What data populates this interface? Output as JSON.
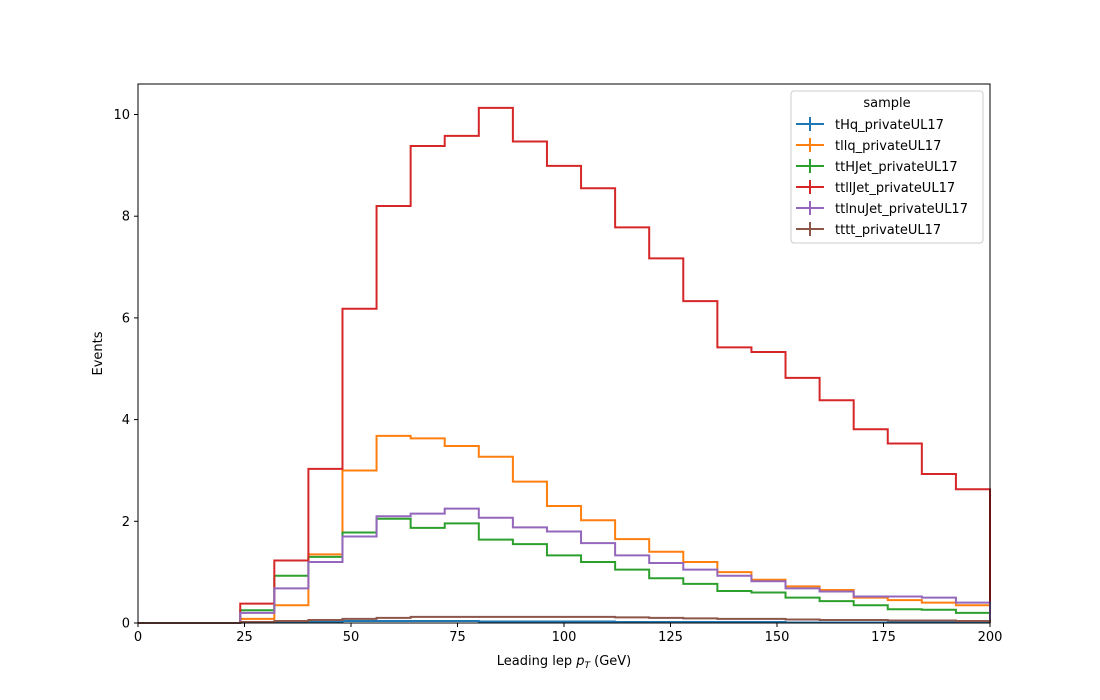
{
  "chart_data": {
    "type": "line",
    "style": "step-histogram",
    "xlabel_prefix": "Leading lep ",
    "xlabel_var": "p",
    "xlabel_sub": "T",
    "xlabel_suffix": " (GeV)",
    "ylabel": "Events",
    "xlim": [
      0,
      200
    ],
    "ylim": [
      0,
      10.6
    ],
    "xticks": [
      0,
      25,
      50,
      75,
      100,
      125,
      150,
      175,
      200
    ],
    "yticks": [
      0,
      2,
      4,
      6,
      8,
      10
    ],
    "grid": false,
    "legend_placement": "top-right",
    "legend_title": "sample",
    "bin_edges": [
      0,
      8,
      16,
      24,
      32,
      40,
      48,
      56,
      64,
      72,
      80,
      88,
      96,
      104,
      112,
      120,
      128,
      136,
      144,
      152,
      160,
      168,
      176,
      184,
      192,
      200
    ],
    "series": [
      {
        "name": "tHq_privateUL17",
        "color": "#1f77b4",
        "values": [
          0,
          0,
          0,
          0.01,
          0.02,
          0.03,
          0.04,
          0.04,
          0.04,
          0.04,
          0.03,
          0.03,
          0.03,
          0.03,
          0.02,
          0.02,
          0.02,
          0.02,
          0.02,
          0.01,
          0.01,
          0.01,
          0.01,
          0.01,
          0.01
        ]
      },
      {
        "name": "tllq_privateUL17",
        "color": "#ff7f0e",
        "values": [
          0,
          0,
          0,
          0.08,
          0.35,
          1.35,
          3.0,
          3.68,
          3.63,
          3.48,
          3.27,
          2.78,
          2.3,
          2.02,
          1.65,
          1.4,
          1.2,
          1.0,
          0.85,
          0.72,
          0.65,
          0.5,
          0.45,
          0.4,
          0.35
        ]
      },
      {
        "name": "ttHJet_privateUL17",
        "color": "#2ca02c",
        "values": [
          0,
          0,
          0,
          0.25,
          0.93,
          1.3,
          1.78,
          2.05,
          1.87,
          1.96,
          1.64,
          1.55,
          1.33,
          1.2,
          1.05,
          0.88,
          0.77,
          0.63,
          0.6,
          0.5,
          0.43,
          0.35,
          0.27,
          0.26,
          0.2
        ]
      },
      {
        "name": "ttllJet_privateUL17",
        "color": "#d62728",
        "values": [
          0,
          0,
          0,
          0.38,
          1.23,
          3.03,
          6.18,
          8.2,
          9.38,
          9.58,
          10.13,
          9.47,
          8.99,
          8.55,
          7.78,
          7.17,
          6.33,
          5.42,
          5.33,
          4.82,
          4.38,
          3.81,
          3.53,
          2.93,
          2.63
        ]
      },
      {
        "name": "ttlnuJet_privateUL17",
        "color": "#9467bd",
        "values": [
          0,
          0,
          0,
          0.2,
          0.68,
          1.2,
          1.7,
          2.1,
          2.15,
          2.25,
          2.07,
          1.88,
          1.8,
          1.57,
          1.33,
          1.18,
          1.05,
          0.93,
          0.82,
          0.68,
          0.62,
          0.52,
          0.52,
          0.5,
          0.4
        ]
      },
      {
        "name": "tttt_privateUL17",
        "color": "#8c564b",
        "values": [
          0,
          0,
          0,
          0.02,
          0.04,
          0.06,
          0.08,
          0.1,
          0.12,
          0.12,
          0.12,
          0.12,
          0.12,
          0.12,
          0.11,
          0.1,
          0.09,
          0.08,
          0.08,
          0.07,
          0.06,
          0.06,
          0.05,
          0.05,
          0.04
        ]
      }
    ]
  }
}
